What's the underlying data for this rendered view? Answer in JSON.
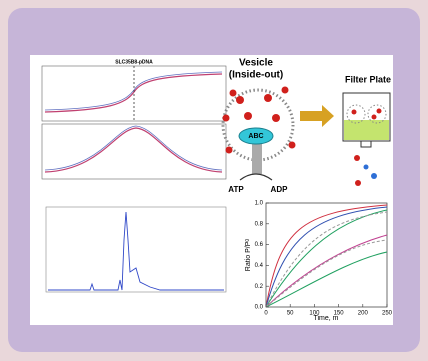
{
  "figure": {
    "melt_plot": {
      "title": "SLC35B8-pDNA"
    },
    "vesicle": {
      "title": "Vesicle",
      "subtitle": "(Inside-out)",
      "transporter": "ABC",
      "input": "ATP",
      "output": "ADP"
    },
    "filter": {
      "title": "Filter Plate"
    },
    "uptake_plot": {
      "ylabel": "Ratio P/P",
      "ylabel_sub": "0",
      "xlabel": "Time, m",
      "yticks": [
        "0.0",
        "0.2",
        "0.4",
        "0.6",
        "0.8",
        "1.0"
      ],
      "xticks": [
        "0",
        "50",
        "100",
        "150",
        "200",
        "250"
      ]
    }
  }
}
